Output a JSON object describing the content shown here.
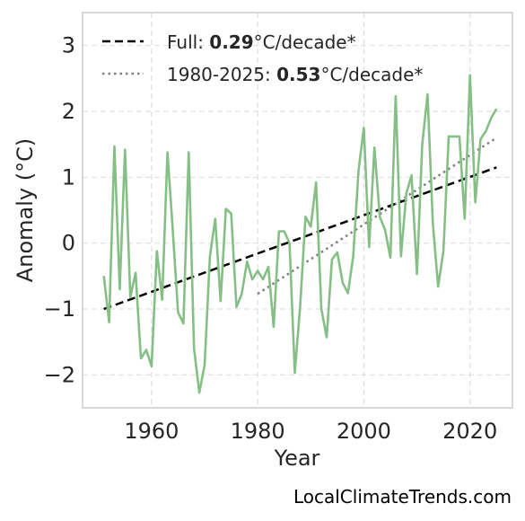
{
  "chart_data": {
    "type": "line",
    "xlabel": "Year",
    "ylabel": "Anomaly (°C)",
    "xlim": [
      1947,
      2028
    ],
    "ylim": [
      -2.5,
      3.5
    ],
    "xticks": [
      1960,
      1980,
      2000,
      2020
    ],
    "yticks": [
      -2,
      -1,
      0,
      1,
      2,
      3
    ],
    "ytick_labels": [
      "−2",
      "−1",
      "0",
      "1",
      "2",
      "3"
    ],
    "grid": true,
    "legend_position": "top-left",
    "colors": {
      "series": "#86bf86",
      "trend_full": "#000000",
      "trend_recent": "#808080",
      "grid": "#e0e0e0",
      "frame": "#cccccc"
    },
    "series": [
      {
        "x": [
          1951,
          1952,
          1953,
          1954,
          1955,
          1956,
          1957,
          1958,
          1959,
          1960,
          1961,
          1962,
          1963,
          1964,
          1965,
          1966,
          1967,
          1968,
          1969,
          1970,
          1971,
          1972,
          1973,
          1974,
          1975,
          1976,
          1977,
          1978,
          1979,
          1980,
          1981,
          1982,
          1983,
          1984,
          1985,
          1986,
          1987,
          1988,
          1989,
          1990,
          1991,
          1992,
          1993,
          1994,
          1995,
          1996,
          1997,
          1998,
          1999,
          2000,
          2001,
          2002,
          2003,
          2004,
          2005,
          2006,
          2007,
          2008,
          2009,
          2010,
          2011,
          2012,
          2013,
          2014,
          2015,
          2016,
          2017,
          2018,
          2019,
          2020,
          2021,
          2022,
          2023,
          2024,
          2025
        ],
        "values": [
          -0.5,
          -1.2,
          1.47,
          -0.7,
          1.42,
          -0.82,
          -0.45,
          -1.75,
          -1.62,
          -1.87,
          -0.12,
          -0.86,
          1.38,
          0.2,
          -1.05,
          -1.22,
          1.38,
          -1.6,
          -2.27,
          -1.85,
          -0.2,
          0.37,
          -0.88,
          0.52,
          0.45,
          -0.97,
          -0.77,
          -0.28,
          -0.55,
          -0.42,
          -0.55,
          -0.36,
          -1.27,
          0.18,
          0.18,
          0.0,
          -1.97,
          -0.95,
          0.4,
          0.25,
          0.92,
          -1.0,
          -1.43,
          -0.25,
          -0.14,
          -0.6,
          -0.76,
          -0.2,
          1.1,
          1.75,
          -0.06,
          1.45,
          0.4,
          0.2,
          -0.22,
          2.23,
          -0.2,
          0.75,
          1.03,
          -0.47,
          1.5,
          2.26,
          0.3,
          -0.66,
          -0.12,
          1.62,
          1.62,
          1.62,
          0.37,
          2.55,
          0.62,
          1.58,
          1.7,
          1.9,
          2.04
        ]
      }
    ],
    "trends": [
      {
        "x": [
          1951,
          2025
        ],
        "y": [
          -1.0,
          1.15
        ]
      },
      {
        "x": [
          1980,
          2025
        ],
        "y": [
          -0.77,
          1.6
        ]
      }
    ],
    "legend": [
      {
        "prefix": "Full: ",
        "value": "0.29",
        "suffix": "°C/decade*"
      },
      {
        "prefix": "1980-2025: ",
        "value": "0.53",
        "suffix": "°C/decade*"
      }
    ],
    "credit": "LocalClimateTrends.com"
  }
}
